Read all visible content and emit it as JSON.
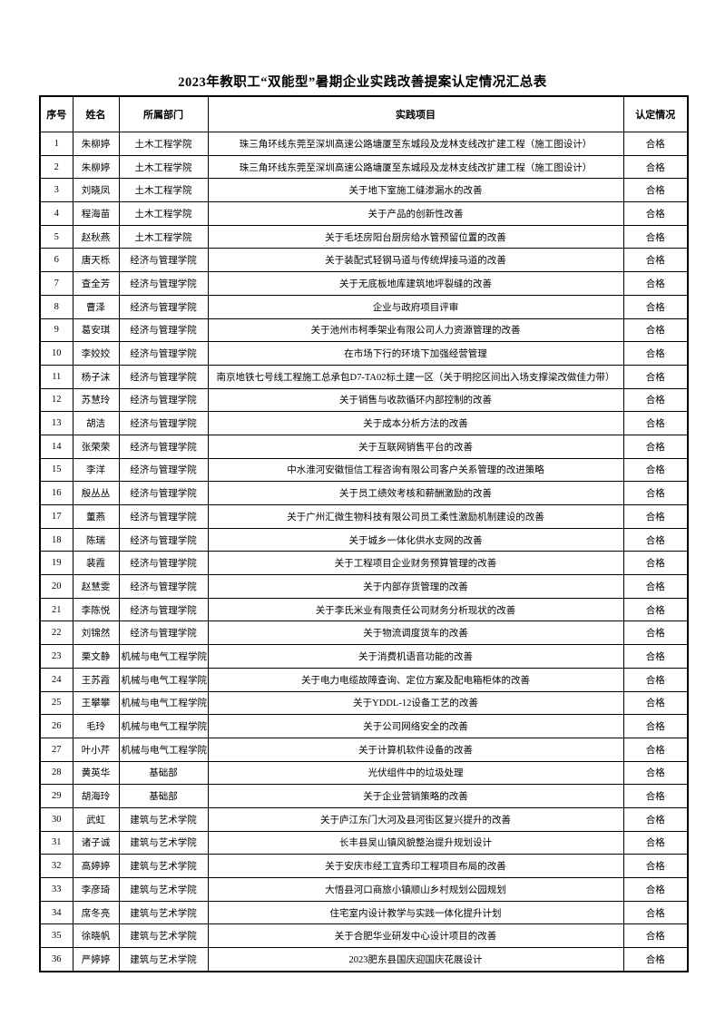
{
  "title": "2023年教职工“双能型”暑期企业实践改善提案认定情况汇总表",
  "table": {
    "headers": {
      "no": "序号",
      "name": "姓名",
      "department": "所属部门",
      "project": "实践项目",
      "status": "认定情况"
    },
    "rows": [
      {
        "no": "1",
        "name": "朱柳婷",
        "department": "土木工程学院",
        "project": "珠三角环线东莞至深圳高速公路塘厦至东城段及龙林支线改扩建工程（施工图设计）",
        "status": "合格"
      },
      {
        "no": "2",
        "name": "朱柳婷",
        "department": "土木工程学院",
        "project": "珠三角环线东莞至深圳高速公路塘厦至东城段及龙林支线改扩建工程（施工图设计）",
        "status": "合格"
      },
      {
        "no": "3",
        "name": "刘晓凤",
        "department": "土木工程学院",
        "project": "关于地下室施工缝渗漏水的改善",
        "status": "合格"
      },
      {
        "no": "4",
        "name": "程海苗",
        "department": "土木工程学院",
        "project": "关于产品的创新性改善",
        "status": "合格"
      },
      {
        "no": "5",
        "name": "赵秋燕",
        "department": "土木工程学院",
        "project": "关于毛坯房阳台厨房给水管预留位置的改善",
        "status": "合格"
      },
      {
        "no": "6",
        "name": "唐天栎",
        "department": "经济与管理学院",
        "project": "关于装配式轻钢马道与传统焊接马道的改善",
        "status": "合格"
      },
      {
        "no": "7",
        "name": "查全芳",
        "department": "经济与管理学院",
        "project": "关于无底板地库建筑地坪裂缝的改善",
        "status": "合格"
      },
      {
        "no": "8",
        "name": "曹泽",
        "department": "经济与管理学院",
        "project": "企业与政府项目评审",
        "status": "合格"
      },
      {
        "no": "9",
        "name": "葛安琪",
        "department": "经济与管理学院",
        "project": "关于池州市柯季架业有限公司人力资源管理的改善",
        "status": "合格"
      },
      {
        "no": "10",
        "name": "李姣姣",
        "department": "经济与管理学院",
        "project": "在市场下行的环境下加强经营管理",
        "status": "合格"
      },
      {
        "no": "11",
        "name": "杨子沫",
        "department": "经济与管理学院",
        "project": "南京地铁七号线工程施工总承包D7-TA02标土建一区（关于明挖区间出入场支撑梁改做佳力带）",
        "status": "合格"
      },
      {
        "no": "12",
        "name": "苏慧玲",
        "department": "经济与管理学院",
        "project": "关于销售与收款循环内部控制的改善",
        "status": "合格"
      },
      {
        "no": "13",
        "name": "胡洁",
        "department": "经济与管理学院",
        "project": "关于成本分析方法的改善",
        "status": "合格"
      },
      {
        "no": "14",
        "name": "张荣荣",
        "department": "经济与管理学院",
        "project": "关于互联网销售平台的改善",
        "status": "合格"
      },
      {
        "no": "15",
        "name": "李洋",
        "department": "经济与管理学院",
        "project": "中水淮河安徽恒信工程咨询有限公司客户关系管理的改进策略",
        "status": "合格"
      },
      {
        "no": "16",
        "name": "殷丛丛",
        "department": "经济与管理学院",
        "project": "关于员工绩效考核和薪酬激励的改善",
        "status": "合格"
      },
      {
        "no": "17",
        "name": "董燕",
        "department": "经济与管理学院",
        "project": "关于广州汇微生物科技有限公司员工柔性激励机制建设的改善",
        "status": "合格"
      },
      {
        "no": "18",
        "name": "陈瑞",
        "department": "经济与管理学院",
        "project": "关于城乡一体化供水支网的改善",
        "status": "合格"
      },
      {
        "no": "19",
        "name": "裴霞",
        "department": "经济与管理学院",
        "project": "关于工程项目企业财务预算管理的改善",
        "status": "合格"
      },
      {
        "no": "20",
        "name": "赵慧雯",
        "department": "经济与管理学院",
        "project": "关于内部存货管理的改善",
        "status": "合格"
      },
      {
        "no": "21",
        "name": "李陈悦",
        "department": "经济与管理学院",
        "project": "关于李氏米业有限责任公司财务分析现状的改善",
        "status": "合格"
      },
      {
        "no": "22",
        "name": "刘锦然",
        "department": "经济与管理学院",
        "project": "关于物流调度货车的改善",
        "status": "合格"
      },
      {
        "no": "23",
        "name": "栗文静",
        "department": "机械与电气工程学院",
        "project": "关于消费机语音功能的改善",
        "status": "合格"
      },
      {
        "no": "24",
        "name": "王苏霞",
        "department": "机械与电气工程学院",
        "project": "关于电力电缆故障查询、定位方案及配电箱柜体的改善",
        "status": "合格"
      },
      {
        "no": "25",
        "name": "王攀攀",
        "department": "机械与电气工程学院",
        "project": "关于YDDL-12设备工艺的改善",
        "status": "合格"
      },
      {
        "no": "26",
        "name": "毛玲",
        "department": "机械与电气工程学院",
        "project": "关于公司网络安全的改善",
        "status": "合格"
      },
      {
        "no": "27",
        "name": "叶小芹",
        "department": "机械与电气工程学院",
        "project": "关于计算机软件设备的改善",
        "status": "合格"
      },
      {
        "no": "28",
        "name": "黄英华",
        "department": "基础部",
        "project": "光伏组件中的垃圾处理",
        "status": "合格"
      },
      {
        "no": "29",
        "name": "胡海玲",
        "department": "基础部",
        "project": "关于企业营销策略的改善",
        "status": "合格"
      },
      {
        "no": "30",
        "name": "武虹",
        "department": "建筑与艺术学院",
        "project": "关于庐江东门大河及县河街区复兴提升的改善",
        "status": "合格"
      },
      {
        "no": "31",
        "name": "诸子诚",
        "department": "建筑与艺术学院",
        "project": "长丰县吴山镇风貌整治提升规划设计",
        "status": "合格"
      },
      {
        "no": "32",
        "name": "高婷婷",
        "department": "建筑与艺术学院",
        "project": "关于安庆市经工宜秀印工程项目布局的改善",
        "status": "合格"
      },
      {
        "no": "33",
        "name": "李彦琦",
        "department": "建筑与艺术学院",
        "project": "大悟县河口商旅小镇顺山乡村规划公园规划",
        "status": "合格"
      },
      {
        "no": "34",
        "name": "席冬亮",
        "department": "建筑与艺术学院",
        "project": "住宅室内设计教学与实践一体化提升计划",
        "status": "合格"
      },
      {
        "no": "35",
        "name": "徐晓帆",
        "department": "建筑与艺术学院",
        "project": "关于合肥华业研发中心设计项目的改善",
        "status": "合格"
      },
      {
        "no": "36",
        "name": "严婷婷",
        "department": "建筑与艺术学院",
        "project": "2023肥东县国庆迎国庆花展设计",
        "status": "合格"
      }
    ]
  }
}
